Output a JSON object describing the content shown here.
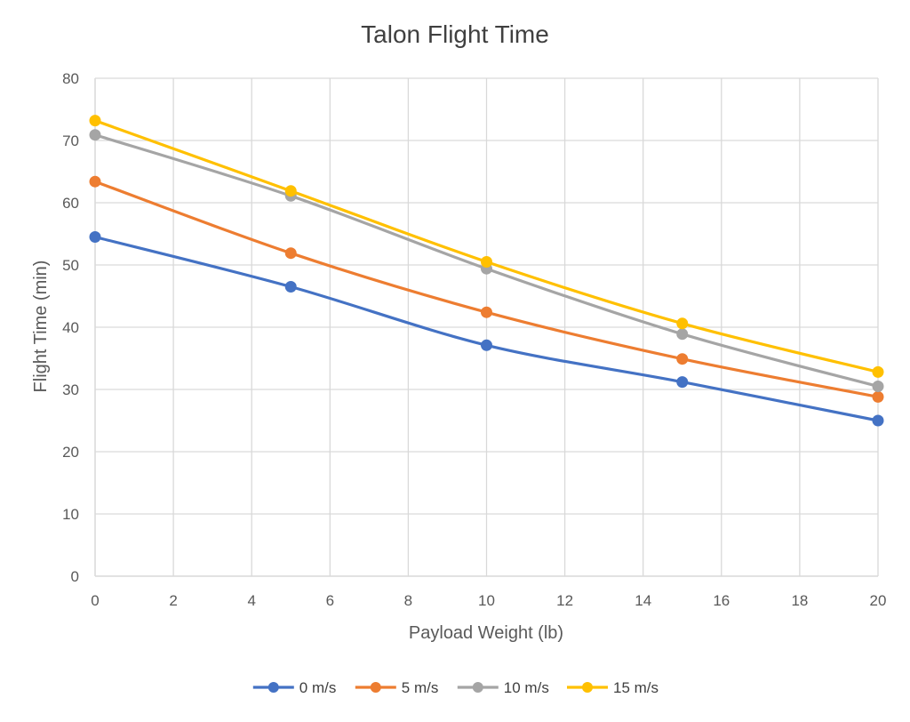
{
  "chart_data": {
    "type": "line",
    "title": "Talon Flight Time",
    "xlabel": "Payload Weight (lb)",
    "ylabel": "Flight Time (min)",
    "xlim": [
      0,
      20
    ],
    "ylim": [
      0,
      80
    ],
    "x_ticks": [
      0,
      2,
      4,
      6,
      8,
      10,
      12,
      14,
      16,
      18,
      20
    ],
    "y_ticks": [
      0,
      10,
      20,
      30,
      40,
      50,
      60,
      70,
      80
    ],
    "grid": true,
    "legend_position": "bottom",
    "x": [
      0,
      5,
      10,
      15,
      20
    ],
    "series": [
      {
        "name": "0 m/s",
        "color": "#4472C4",
        "values": [
          54.5,
          46.5,
          37.1,
          31.2,
          25.0
        ]
      },
      {
        "name": "5 m/s",
        "color": "#ED7D31",
        "values": [
          63.4,
          51.9,
          42.4,
          34.9,
          28.8
        ]
      },
      {
        "name": "10 m/s",
        "color": "#A5A5A5",
        "values": [
          70.9,
          61.1,
          49.4,
          38.9,
          30.5
        ]
      },
      {
        "name": "15 m/s",
        "color": "#FFC000",
        "values": [
          73.2,
          61.9,
          50.5,
          40.6,
          32.8
        ]
      }
    ]
  }
}
